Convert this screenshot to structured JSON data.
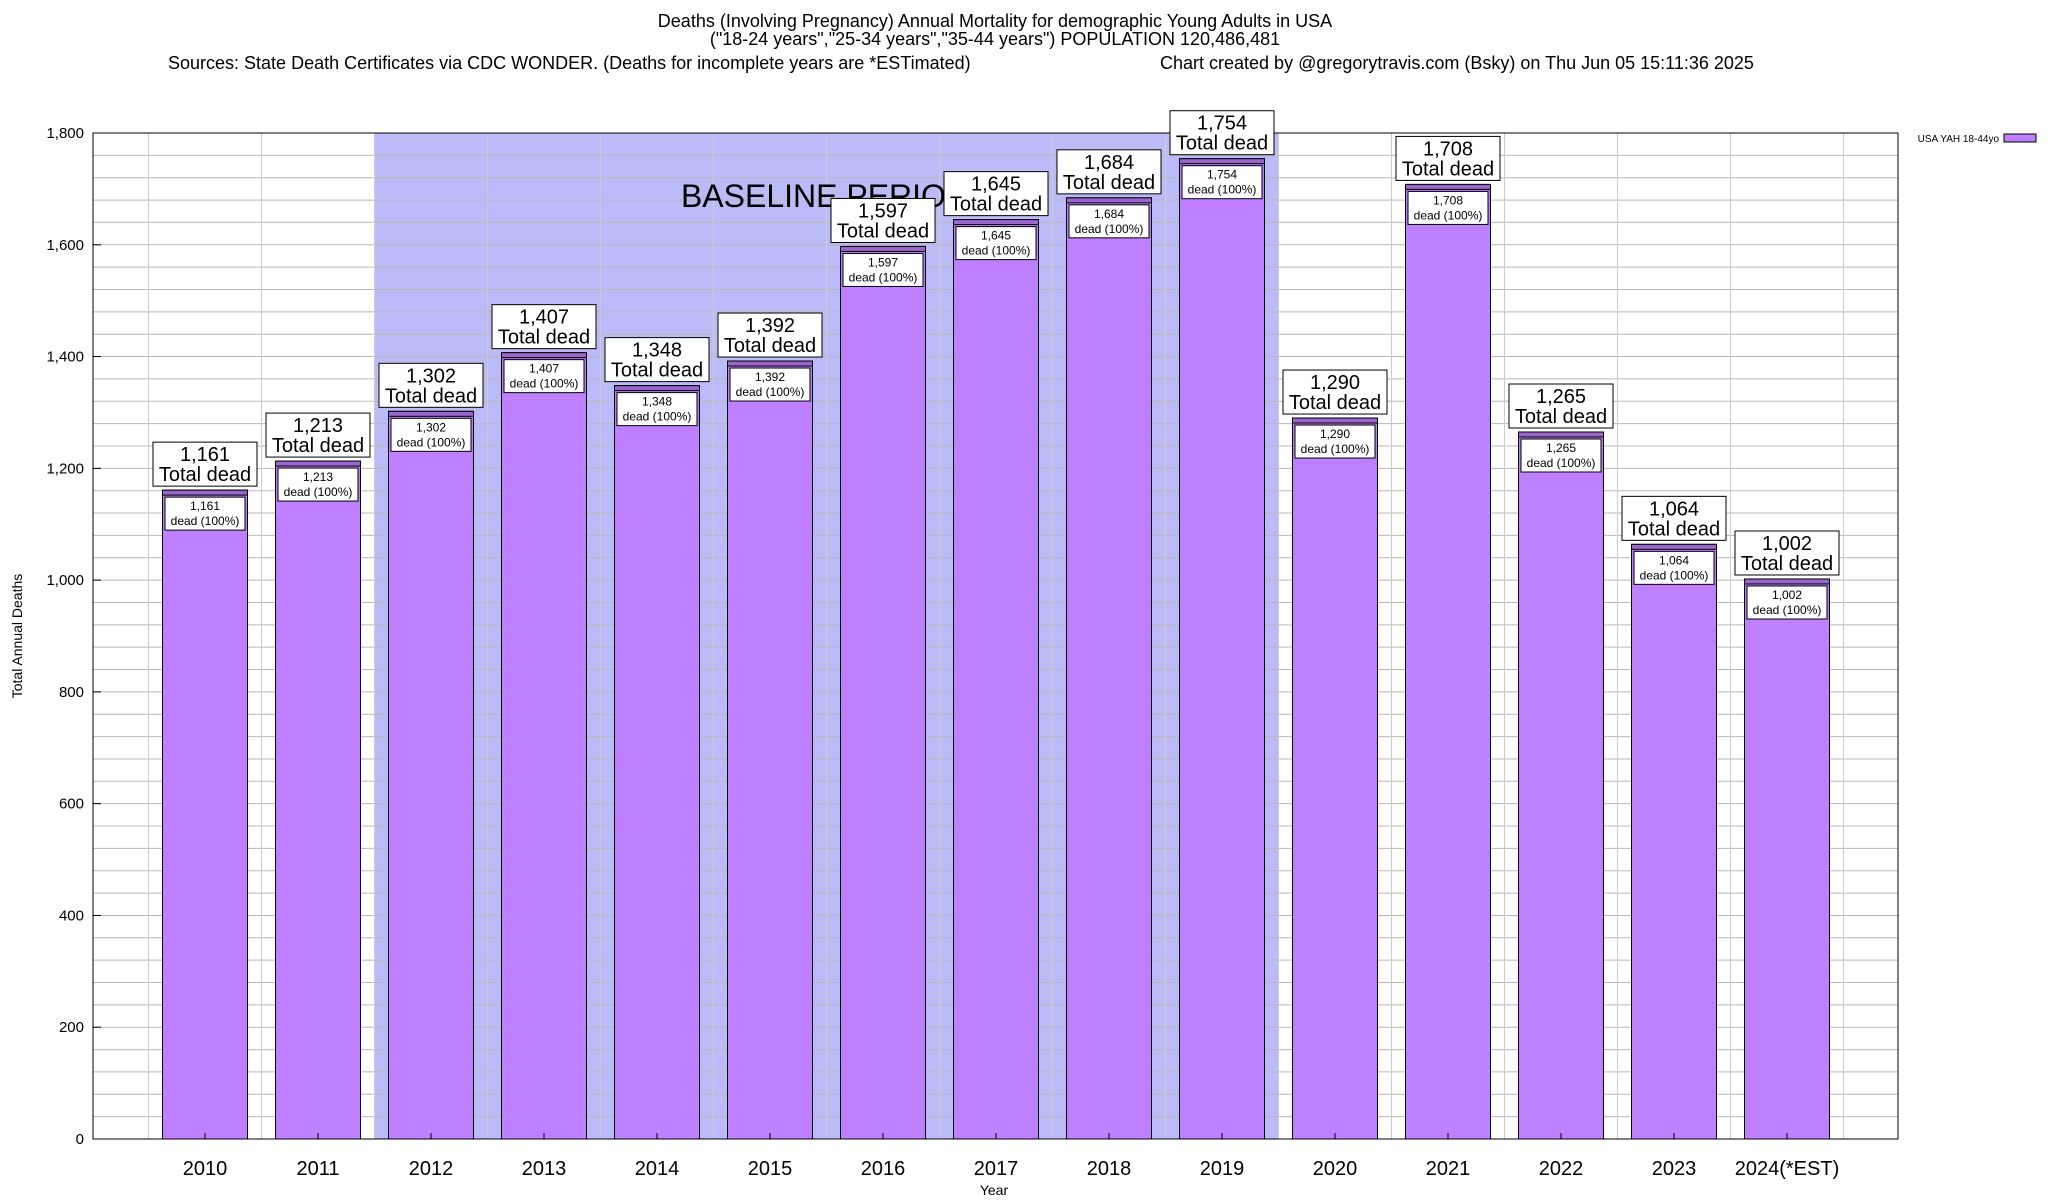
{
  "title": {
    "line1": "Deaths (Involving Pregnancy) Annual Mortality for demographic Young Adults in USA",
    "line2": "(\"18-24 years\",\"25-34 years\",\"35-44 years\") POPULATION 120,486,481",
    "sources": "Sources: State Death Certificates via CDC WONDER. (Deaths for incomplete years are *ESTimated)",
    "credit": "Chart created by @gregorytravis.com (Bsky) on Thu Jun 05 15:11:36 2025"
  },
  "chart_data": {
    "type": "bar",
    "categories": [
      "2010",
      "2011",
      "2012",
      "2013",
      "2014",
      "2015",
      "2016",
      "2017",
      "2018",
      "2019",
      "2020",
      "2021",
      "2022",
      "2023",
      "2024(*EST)"
    ],
    "series": [
      {
        "name": "USA YAH 18-44yo",
        "values": [
          1161,
          1213,
          1302,
          1407,
          1348,
          1392,
          1597,
          1645,
          1684,
          1754,
          1290,
          1708,
          1265,
          1064,
          1002
        ]
      }
    ],
    "total_labels": [
      "1,161",
      "1,213",
      "1,302",
      "1,407",
      "1,348",
      "1,392",
      "1,597",
      "1,645",
      "1,684",
      "1,754",
      "1,290",
      "1,708",
      "1,265",
      "1,064",
      "1,002"
    ],
    "total_caption": "Total dead",
    "inner_caption": "dead (100%)",
    "xlabel": "Year",
    "ylabel": "Total Annual Deaths",
    "ylim": [
      0,
      1800
    ],
    "yticks": [
      0,
      200,
      400,
      600,
      800,
      1000,
      1200,
      1400,
      1600,
      1800
    ],
    "ytick_labels": [
      "0",
      "200",
      "400",
      "600",
      "800",
      "1,000",
      "1,200",
      "1,400",
      "1,600",
      "1,800"
    ],
    "grid": true,
    "legend_position": "top-right",
    "baseline": {
      "label": "BASELINE PERIOD",
      "start": "2012",
      "end": "2019",
      "color": "#bbbbf8"
    },
    "colors": {
      "bar_fill": "#bf80ff",
      "bar_top": "#9966cc",
      "bar_edge": "#000000"
    }
  }
}
